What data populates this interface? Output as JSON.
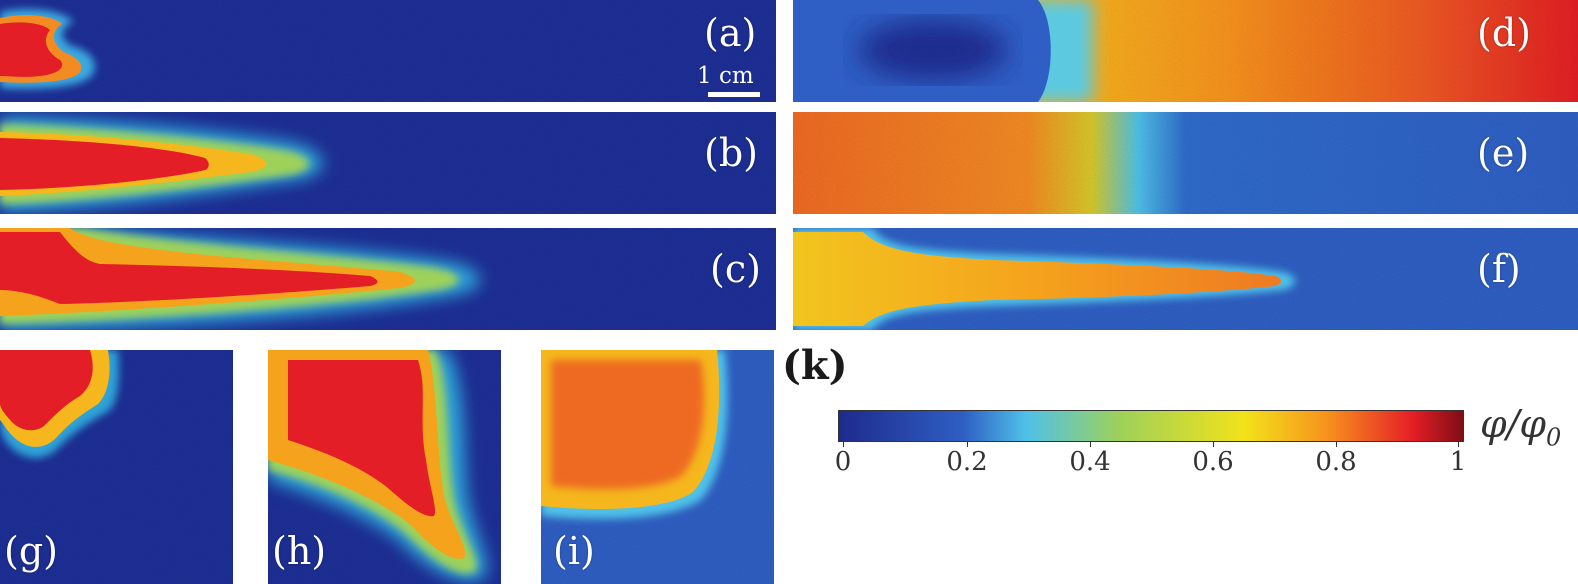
{
  "panels": {
    "a": "(a)",
    "b": "(b)",
    "c": "(c)",
    "d": "(d)",
    "e": "(e)",
    "f": "(f)",
    "g": "(g)",
    "h": "(h)",
    "i": "(i)"
  },
  "scale_bar": {
    "label": "1 cm"
  },
  "k_label": "(k)",
  "colorbar": {
    "title_main": "φ/φ",
    "title_sub": "0",
    "ticks": [
      "0",
      "0.2",
      "0.4",
      "0.6",
      "0.8",
      "1"
    ],
    "colormap": [
      "#1e2a8c",
      "#2f5fc4",
      "#4fc1e8",
      "#9ed15a",
      "#f2e21a",
      "#f7941d",
      "#e41e26",
      "#7f0d16"
    ]
  }
}
